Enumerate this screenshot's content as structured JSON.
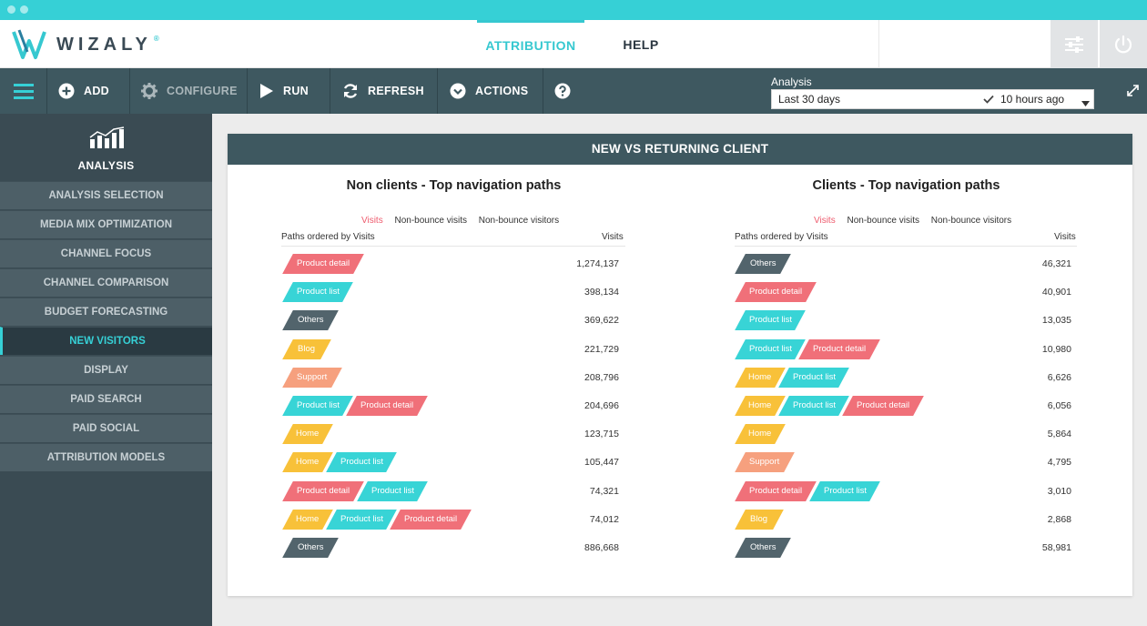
{
  "app": {
    "brand": "WIZALY",
    "nav_tabs": [
      {
        "label": "ATTRIBUTION",
        "active": true
      },
      {
        "label": "HELP",
        "active": false
      }
    ]
  },
  "toolbar": {
    "add": "ADD",
    "configure": "CONFIGURE",
    "run": "RUN",
    "refresh": "REFRESH",
    "actions": "ACTIONS",
    "analysis_label": "Analysis",
    "analysis_period": "Last 30 days",
    "analysis_status": "10 hours ago"
  },
  "sidebar": {
    "title": "ANALYSIS",
    "items": [
      {
        "label": "ANALYSIS SELECTION",
        "active": false
      },
      {
        "label": "MEDIA MIX OPTIMIZATION",
        "active": false
      },
      {
        "label": "CHANNEL FOCUS",
        "active": false
      },
      {
        "label": "CHANNEL COMPARISON",
        "active": false
      },
      {
        "label": "BUDGET FORECASTING",
        "active": false
      },
      {
        "label": "NEW VISITORS",
        "active": true
      },
      {
        "label": "DISPLAY",
        "active": false
      },
      {
        "label": "PAID SEARCH",
        "active": false
      },
      {
        "label": "PAID SOCIAL",
        "active": false
      },
      {
        "label": "ATTRIBUTION MODELS",
        "active": false
      }
    ]
  },
  "card": {
    "title": "NEW VS RETURNING CLIENT",
    "legend": [
      "Visits",
      "Non-bounce visits",
      "Non-bounce visitors"
    ],
    "col_left": "Paths ordered by Visits",
    "col_right": "Visits",
    "panels": [
      {
        "title": "Non clients - Top navigation paths",
        "rows": [
          {
            "steps": [
              "Product detail"
            ],
            "value": "1,274,137"
          },
          {
            "steps": [
              "Product list"
            ],
            "value": "398,134"
          },
          {
            "steps": [
              "Others"
            ],
            "value": "369,622"
          },
          {
            "steps": [
              "Blog"
            ],
            "value": "221,729"
          },
          {
            "steps": [
              "Support"
            ],
            "value": "208,796"
          },
          {
            "steps": [
              "Product list",
              "Product detail"
            ],
            "value": "204,696"
          },
          {
            "steps": [
              "Home"
            ],
            "value": "123,715"
          },
          {
            "steps": [
              "Home",
              "Product list"
            ],
            "value": "105,447"
          },
          {
            "steps": [
              "Product detail",
              "Product list"
            ],
            "value": "74,321"
          },
          {
            "steps": [
              "Home",
              "Product list",
              "Product detail"
            ],
            "value": "74,012"
          },
          {
            "steps": [
              "Others"
            ],
            "value": "886,668"
          }
        ]
      },
      {
        "title": "Clients - Top navigation paths",
        "rows": [
          {
            "steps": [
              "Others"
            ],
            "value": "46,321"
          },
          {
            "steps": [
              "Product detail"
            ],
            "value": "40,901"
          },
          {
            "steps": [
              "Product list"
            ],
            "value": "13,035"
          },
          {
            "steps": [
              "Product list",
              "Product detail"
            ],
            "value": "10,980"
          },
          {
            "steps": [
              "Home",
              "Product list"
            ],
            "value": "6,626"
          },
          {
            "steps": [
              "Home",
              "Product list",
              "Product detail"
            ],
            "value": "6,056"
          },
          {
            "steps": [
              "Home"
            ],
            "value": "5,864"
          },
          {
            "steps": [
              "Support"
            ],
            "value": "4,795"
          },
          {
            "steps": [
              "Product detail",
              "Product list"
            ],
            "value": "3,010"
          },
          {
            "steps": [
              "Blog"
            ],
            "value": "2,868"
          },
          {
            "steps": [
              "Others"
            ],
            "value": "58,981"
          }
        ]
      }
    ]
  },
  "step_colors": {
    "Product detail": "#f07079",
    "Product list": "#38d4d6",
    "Others": "#52646c",
    "Blog": "#f8c139",
    "Support": "#f6a07e",
    "Home": "#f8c139"
  }
}
